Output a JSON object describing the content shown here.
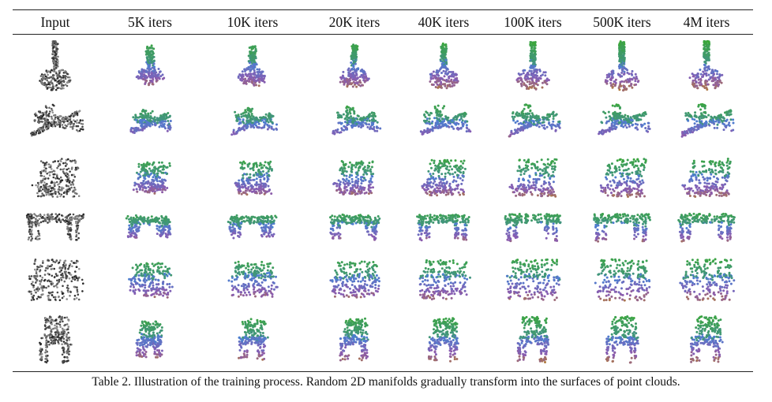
{
  "columns": [
    "Input",
    "5K iters",
    "10K iters",
    "20K iters",
    "40K iters",
    "100K iters",
    "500K iters",
    "4M iters"
  ],
  "rows": [
    {
      "object": "guitar-point-cloud"
    },
    {
      "object": "airplane-point-cloud"
    },
    {
      "object": "laptop-point-cloud"
    },
    {
      "object": "table-point-cloud"
    },
    {
      "object": "sofa-point-cloud"
    },
    {
      "object": "chair-point-cloud"
    }
  ],
  "caption": "Table 2. Illustration of the training process. Random 2D manifolds gradually transform into the surfaces of point clouds.",
  "colors": {
    "input_points": "#444444",
    "manifold_top": "#3aa835",
    "manifold_mid": "#8a5bb0",
    "manifold_low": "#b07a3a",
    "manifold_blue": "#4a7fd0",
    "rule": "#222222"
  }
}
